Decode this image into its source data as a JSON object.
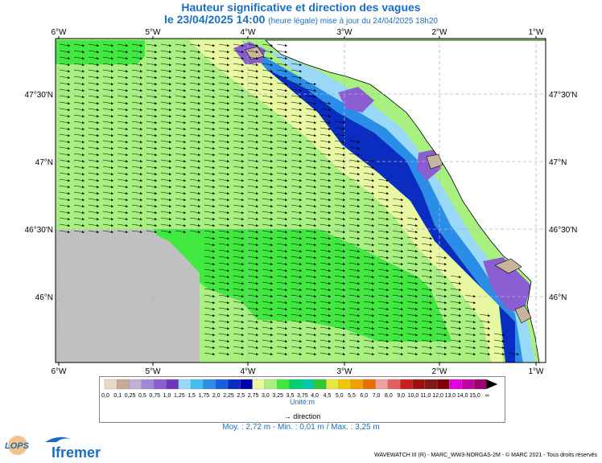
{
  "header": {
    "title": "Hauteur significative et direction des vagues",
    "date_label": "le 23/04/2025 14:00",
    "update_note": "(heure légale) mise à jour du 24/04/2025 18h20"
  },
  "map": {
    "lon_ticks": [
      "6°W",
      "5°W",
      "4°W",
      "3°W",
      "2°W",
      "1°W"
    ],
    "lat_ticks": [
      "47°30'N",
      "47°N",
      "46°30'N",
      "46°N"
    ],
    "land_color": "#c8b49a",
    "nodata_color": "#c0c0c0",
    "grid_color": "#aab4d6",
    "wave_direction": "east"
  },
  "legend": {
    "labels": [
      "0,0",
      "0,1",
      "0,25",
      "0,5",
      "0,75",
      "1,0",
      "1,25",
      "1,5",
      "1,75",
      "2,0",
      "2,25",
      "2,5",
      "2,75",
      "3,0",
      "3,25",
      "3,5",
      "3,75",
      "4,0",
      "4,5",
      "5,0",
      "5,5",
      "6,0",
      "7,0",
      "8,0",
      "9,0",
      "10,0",
      "11,0",
      "12,0",
      "13,0",
      "14,0",
      "15,0",
      "∞"
    ],
    "colors": [
      "#e8d8c8",
      "#c8aa98",
      "#c0b0d8",
      "#a08ad8",
      "#8a5ed0",
      "#6a38b8",
      "#9ad8f8",
      "#44bff0",
      "#2a8ee8",
      "#1a5ee0",
      "#0a2cc0",
      "#0000a8",
      "#e8f8a0",
      "#a8f080",
      "#40e840",
      "#00d070",
      "#00c8a8",
      "#30c830",
      "#e8e840",
      "#f0c800",
      "#f0a000",
      "#e87000",
      "#f0a0a0",
      "#e06060",
      "#c82020",
      "#a01010",
      "#801818",
      "#800000",
      "#e000e0",
      "#c000a0",
      "#a00070",
      "#000000"
    ],
    "unit": "Unité:m",
    "direction_label": "direction"
  },
  "stats": "Moy. : 2,72 m   -   Min. : 0,01 m / Max. : 3,25 m",
  "footer": "WAVEWATCH III (R) - MARC_WW3-NORGAS-2M - © MARC 2021 - Tous droits réservés",
  "logos": {
    "lops": "LOPS",
    "ifremer": "Ifremer"
  }
}
